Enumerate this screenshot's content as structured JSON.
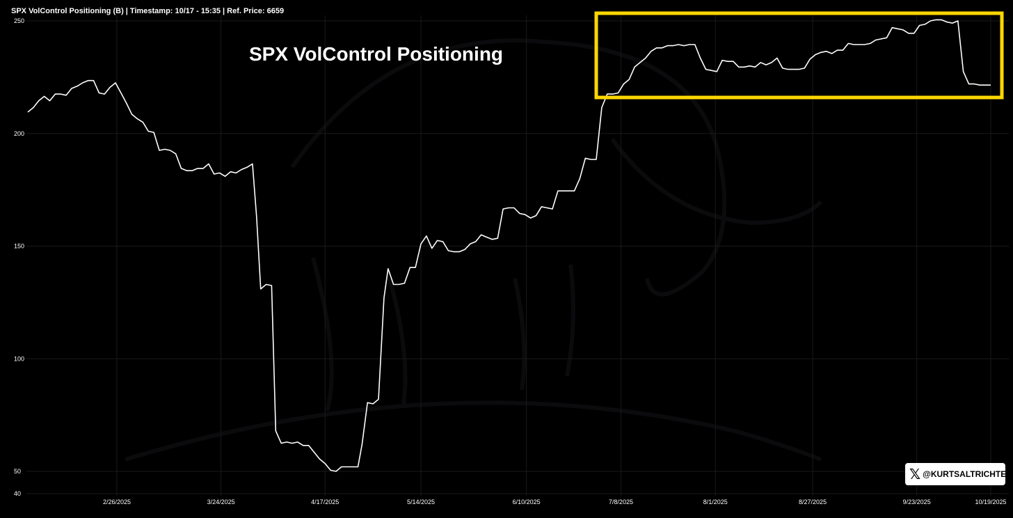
{
  "header": {
    "title": "SPX VolControl Positioning (B) | Timestamp: 10/17 - 15:35  | Ref. Price: 6659"
  },
  "overlay_title": "SPX VolControl Positioning",
  "watermark": {
    "icon": "x-logo-icon",
    "handle": "@KURTSALTRICHTER"
  },
  "colors": {
    "background": "#000000",
    "line": "#ffffff",
    "highlight_box": "#ffd700",
    "grid": "#1a1a1a",
    "axis_text": "#ffffff"
  },
  "chart_data": {
    "type": "line",
    "title": "SPX VolControl Positioning (B) | Timestamp: 10/17 - 15:35  | Ref. Price: 6659",
    "xlabel": "",
    "ylabel": "",
    "ylim": [
      40,
      250
    ],
    "yticks": [
      40,
      50,
      100,
      150,
      200,
      250
    ],
    "xticks": [
      "2/26/2025",
      "3/24/2025",
      "4/17/2025",
      "5/14/2025",
      "6/10/2025",
      "7/8/2025",
      "8/1/2025",
      "8/27/2025",
      "9/23/2025",
      "10/19/2025"
    ],
    "grid": true,
    "legend": "none",
    "annotation": "highlight box around recent high-exposure region (mid-July to mid-October)",
    "series": [
      {
        "values": [
          [
            0,
            209.5
          ],
          [
            4,
            211.5
          ],
          [
            8,
            214.5
          ],
          [
            12,
            216.5
          ],
          [
            16,
            214.5
          ],
          [
            20,
            217.5
          ],
          [
            24,
            217.5
          ],
          [
            28,
            217.0
          ],
          [
            32,
            220.0
          ],
          [
            36,
            221.0
          ],
          [
            40,
            222.5
          ],
          [
            44,
            223.5
          ],
          [
            48,
            223.5
          ],
          [
            52,
            218.0
          ],
          [
            56,
            217.5
          ],
          [
            60,
            220.5
          ],
          [
            64,
            222.5
          ],
          [
            68,
            218.0
          ],
          [
            72,
            213.5
          ],
          [
            76,
            208.5
          ],
          [
            80,
            206.5
          ],
          [
            84,
            205.0
          ],
          [
            88,
            201.0
          ],
          [
            92,
            200.5
          ],
          [
            96,
            192.5
          ],
          [
            100,
            193.0
          ],
          [
            104,
            192.5
          ],
          [
            108,
            191.0
          ],
          [
            112,
            184.5
          ],
          [
            116,
            183.5
          ],
          [
            120,
            183.5
          ],
          [
            124,
            184.5
          ],
          [
            128,
            184.5
          ],
          [
            132,
            186.5
          ],
          [
            136,
            182.0
          ],
          [
            140,
            182.5
          ],
          [
            144,
            181.0
          ],
          [
            148,
            183.0
          ],
          [
            152,
            182.5
          ],
          [
            156,
            184.0
          ],
          [
            160,
            185.0
          ],
          [
            164,
            186.5
          ],
          [
            167,
            163.0
          ],
          [
            170,
            131.0
          ],
          [
            174,
            133.0
          ],
          [
            178,
            132.5
          ],
          [
            181,
            68.0
          ],
          [
            185,
            62.5
          ],
          [
            189,
            63.0
          ],
          [
            193,
            62.5
          ],
          [
            197,
            63.0
          ],
          [
            201,
            61.5
          ],
          [
            205,
            61.5
          ],
          [
            209,
            58.5
          ],
          [
            213,
            55.5
          ],
          [
            217,
            53.5
          ],
          [
            221,
            50.5
          ],
          [
            225,
            50.0
          ],
          [
            229,
            52.0
          ],
          [
            233,
            52.0
          ],
          [
            237,
            52.0
          ],
          [
            241,
            52.0
          ],
          [
            244,
            62.0
          ],
          [
            248,
            80.5
          ],
          [
            252,
            80.0
          ],
          [
            256,
            82.0
          ],
          [
            260,
            127.0
          ],
          [
            263,
            140.0
          ],
          [
            267,
            133.0
          ],
          [
            271,
            133.0
          ],
          [
            275,
            133.5
          ],
          [
            279,
            140.5
          ],
          [
            283,
            140.5
          ],
          [
            287,
            151.0
          ],
          [
            291,
            154.5
          ],
          [
            295,
            149.0
          ],
          [
            299,
            152.5
          ],
          [
            303,
            152.0
          ],
          [
            307,
            148.0
          ],
          [
            311,
            147.5
          ],
          [
            315,
            147.5
          ],
          [
            319,
            148.5
          ],
          [
            323,
            151.0
          ],
          [
            327,
            152.0
          ],
          [
            331,
            155.0
          ],
          [
            335,
            154.0
          ],
          [
            339,
            153.0
          ],
          [
            343,
            153.5
          ],
          [
            347,
            166.5
          ],
          [
            351,
            167.0
          ],
          [
            355,
            167.0
          ],
          [
            359,
            164.5
          ],
          [
            363,
            164.0
          ],
          [
            367,
            162.5
          ],
          [
            371,
            163.5
          ],
          [
            375,
            167.5
          ],
          [
            379,
            167.0
          ],
          [
            383,
            166.5
          ],
          [
            387,
            174.5
          ],
          [
            391,
            174.5
          ],
          [
            395,
            174.5
          ],
          [
            399,
            174.5
          ],
          [
            403,
            180.0
          ],
          [
            407,
            189.0
          ],
          [
            411,
            188.5
          ],
          [
            415,
            188.5
          ],
          [
            419,
            211.5
          ],
          [
            423,
            217.5
          ],
          [
            427,
            217.5
          ],
          [
            431,
            218.0
          ],
          [
            435,
            222.0
          ],
          [
            439,
            224.0
          ],
          [
            443,
            229.5
          ],
          [
            447,
            231.5
          ],
          [
            451,
            233.5
          ],
          [
            455,
            236.5
          ],
          [
            459,
            238.0
          ],
          [
            463,
            238.0
          ],
          [
            467,
            239.0
          ],
          [
            471,
            239.0
          ],
          [
            475,
            239.5
          ],
          [
            479,
            239.0
          ],
          [
            483,
            239.5
          ],
          [
            487,
            239.5
          ],
          [
            491,
            233.5
          ],
          [
            495,
            228.5
          ],
          [
            499,
            228.0
          ],
          [
            503,
            227.5
          ],
          [
            507,
            232.5
          ],
          [
            511,
            232.0
          ],
          [
            515,
            232.0
          ],
          [
            519,
            229.5
          ],
          [
            523,
            229.5
          ],
          [
            527,
            230.0
          ],
          [
            531,
            229.5
          ],
          [
            535,
            231.5
          ],
          [
            539,
            230.5
          ],
          [
            543,
            231.5
          ],
          [
            547,
            233.5
          ],
          [
            551,
            229.0
          ],
          [
            555,
            228.5
          ],
          [
            559,
            228.5
          ],
          [
            563,
            228.5
          ],
          [
            567,
            229.0
          ],
          [
            571,
            233.0
          ],
          [
            575,
            235.0
          ],
          [
            579,
            236.0
          ],
          [
            583,
            236.5
          ],
          [
            587,
            235.5
          ],
          [
            591,
            237.0
          ],
          [
            595,
            237.0
          ],
          [
            599,
            240.0
          ],
          [
            603,
            239.5
          ],
          [
            607,
            239.5
          ],
          [
            611,
            239.5
          ],
          [
            615,
            240.0
          ],
          [
            619,
            241.5
          ],
          [
            623,
            242.0
          ],
          [
            627,
            242.5
          ],
          [
            631,
            247.0
          ],
          [
            635,
            246.5
          ],
          [
            639,
            246.0
          ],
          [
            643,
            244.5
          ],
          [
            647,
            244.5
          ],
          [
            651,
            248.0
          ],
          [
            655,
            248.5
          ],
          [
            659,
            250.0
          ],
          [
            663,
            250.5
          ],
          [
            667,
            250.5
          ],
          [
            671,
            249.5
          ],
          [
            675,
            249.0
          ],
          [
            679,
            250.0
          ],
          [
            683,
            227.5
          ],
          [
            687,
            222.0
          ],
          [
            691,
            222.0
          ],
          [
            695,
            221.5
          ],
          [
            699,
            221.5
          ],
          [
            703,
            221.5
          ]
        ]
      }
    ]
  }
}
